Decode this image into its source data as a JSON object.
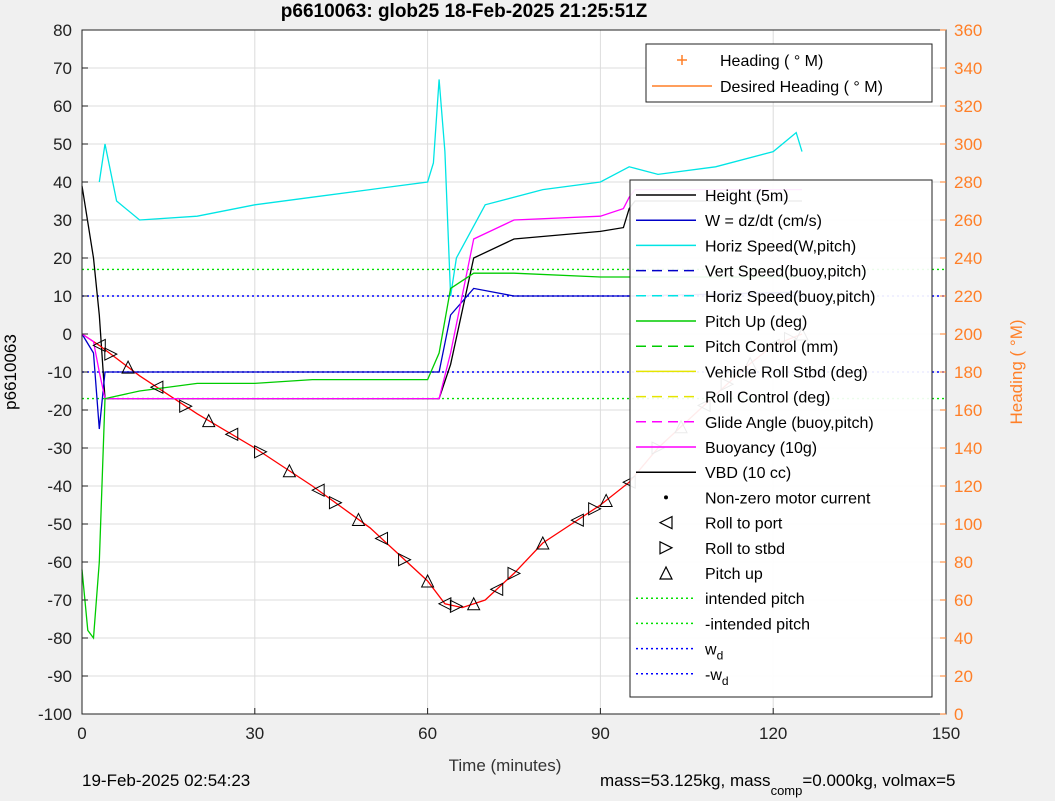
{
  "chart_data": {
    "type": "line",
    "title": "p6610063: glob25 18-Feb-2025 21:25:51Z",
    "xlabel": "Time (minutes)",
    "ylabel_left": "p6610063",
    "ylabel_right": "Heading (  °M)",
    "xlim": [
      0,
      150
    ],
    "ylim_left": [
      -100,
      80
    ],
    "ylim_right": [
      0,
      360
    ],
    "x_ticks": [
      0,
      30,
      60,
      90,
      120,
      150
    ],
    "y_ticks_left": [
      -100,
      -90,
      -80,
      -70,
      -60,
      -50,
      -40,
      -30,
      -20,
      -10,
      0,
      10,
      20,
      30,
      40,
      50,
      60,
      70,
      80
    ],
    "y_ticks_right": [
      0,
      20,
      40,
      60,
      80,
      100,
      120,
      140,
      160,
      180,
      200,
      220,
      240,
      260,
      280,
      300,
      320,
      340,
      360
    ],
    "x_tick_labels": [
      "0",
      "30",
      "60",
      "90",
      "120",
      "150"
    ],
    "y_tick_labels_left": [
      "-100",
      "-90",
      "-80",
      "-70",
      "-60",
      "-50",
      "-40",
      "-30",
      "-20",
      "-10",
      "0",
      "10",
      "20",
      "30",
      "40",
      "50",
      "60",
      "70",
      "80"
    ],
    "y_tick_labels_right": [
      "0",
      "20",
      "40",
      "60",
      "80",
      "100",
      "120",
      "140",
      "160",
      "180",
      "200",
      "220",
      "240",
      "260",
      "280",
      "300",
      "320",
      "340",
      "360"
    ],
    "grid": true,
    "legend_top": [
      {
        "label": "Heading (  ° M)",
        "color": "#ff7f27",
        "style": "plus"
      },
      {
        "label": "Desired Heading (    ° M)",
        "color": "#ff7f27",
        "style": "solid"
      }
    ],
    "legend_main": [
      {
        "label": "Height (5m)",
        "color": "#000000",
        "style": "solid"
      },
      {
        "label": "W = dz/dt (cm/s)",
        "color": "#0000c8",
        "style": "solid"
      },
      {
        "label": "Horiz Speed(W,pitch)",
        "color": "#00e5e5",
        "style": "solid"
      },
      {
        "label": "Vert Speed(buoy,pitch)",
        "color": "#0000c8",
        "style": "dashed"
      },
      {
        "label": "Horiz Speed(buoy,pitch)",
        "color": "#00e5e5",
        "style": "dashed"
      },
      {
        "label": "Pitch Up (deg)",
        "color": "#00cc00",
        "style": "solid"
      },
      {
        "label": "Pitch Control (mm)",
        "color": "#00cc00",
        "style": "dashed"
      },
      {
        "label": "Vehicle Roll Stbd (deg)",
        "color": "#e5e500",
        "style": "solid"
      },
      {
        "label": "Roll Control (deg)",
        "color": "#e5e500",
        "style": "dashed"
      },
      {
        "label": "Glide Angle (buoy,pitch)",
        "color": "#ff00ff",
        "style": "dashed"
      },
      {
        "label": "Buoyancy (10g)",
        "color": "#ff00ff",
        "style": "solid"
      },
      {
        "label": "VBD (10 cc)",
        "color": "#000000",
        "style": "solid"
      },
      {
        "label": "Non-zero motor current",
        "color": "#000000",
        "style": "dot"
      },
      {
        "label": "Roll to port",
        "color": "#000000",
        "style": "tri-left"
      },
      {
        "label": "Roll to stbd",
        "color": "#000000",
        "style": "tri-right"
      },
      {
        "label": "Pitch up",
        "color": "#000000",
        "style": "tri-up"
      },
      {
        "label": "intended pitch",
        "color": "#00e000",
        "style": "dotted"
      },
      {
        "label": "-intended pitch",
        "color": "#00e000",
        "style": "dotted"
      },
      {
        "label": "w",
        "sub": "d",
        "color": "#0000ff",
        "style": "dotted"
      },
      {
        "label": "-w",
        "sub": "d",
        "color": "#0000ff",
        "style": "dotted"
      }
    ],
    "series": [
      {
        "name": "Height (5m)",
        "color": "#000000",
        "x": [
          0,
          2,
          3,
          4,
          62,
          64,
          68,
          75,
          90,
          94,
          95,
          96,
          125
        ],
        "y": [
          39,
          20,
          5,
          -17,
          -17,
          -8,
          20,
          25,
          27,
          28,
          33,
          35,
          35
        ]
      },
      {
        "name": "Depth",
        "color": "#ff0000",
        "x": [
          0,
          3,
          10,
          20,
          30,
          40,
          50,
          55,
          60,
          63,
          66,
          70,
          75,
          80,
          85,
          90,
          95,
          100,
          105,
          110,
          115,
          120,
          125
        ],
        "y": [
          0,
          -3,
          -11,
          -21,
          -30,
          -40,
          -51,
          -58,
          -65,
          -71,
          -72,
          -70,
          -63,
          -55,
          -50,
          -45,
          -39,
          -30,
          -23,
          -16,
          -9,
          -3,
          0
        ]
      },
      {
        "name": "W = dz/dt (cm/s)",
        "color": "#0000c8",
        "x": [
          0,
          2,
          3,
          4,
          62,
          64,
          68,
          75,
          90,
          95,
          125
        ],
        "y": [
          0,
          -5,
          -25,
          -10,
          -10,
          5,
          12,
          10,
          10,
          10,
          11
        ]
      },
      {
        "name": "Buoyancy (10g)",
        "color": "#ff00ff",
        "x": [
          0,
          2,
          3,
          4,
          62,
          64,
          68,
          75,
          90,
          94,
          95,
          96,
          125
        ],
        "y": [
          0,
          -2,
          -10,
          -17,
          -17,
          -5,
          25,
          30,
          31,
          33,
          36,
          38,
          38
        ]
      },
      {
        "name": "Horiz Speed(W,pitch)",
        "color": "#00e5e5",
        "x": [
          3,
          4,
          6,
          10,
          20,
          30,
          40,
          50,
          60,
          61,
          62,
          63,
          64,
          65,
          70,
          80,
          90,
          95,
          100,
          110,
          120,
          124,
          125
        ],
        "y": [
          40,
          50,
          35,
          30,
          31,
          34,
          36,
          38,
          40,
          45,
          67,
          48,
          10,
          20,
          34,
          38,
          40,
          44,
          42,
          44,
          48,
          53,
          48
        ]
      },
      {
        "name": "Pitch Up (deg)",
        "color": "#00cc00",
        "x": [
          0,
          1,
          2,
          3,
          4,
          10,
          20,
          30,
          40,
          50,
          60,
          62,
          64,
          68,
          75,
          90,
          95,
          125
        ],
        "y": [
          -62,
          -78,
          -80,
          -60,
          -17,
          -15,
          -13,
          -13,
          -12,
          -12,
          -12,
          -5,
          12,
          16,
          16,
          15,
          15,
          15
        ]
      }
    ],
    "annotations_footer": {
      "left": "19-Feb-2025 02:54:23",
      "right_prefix": "mass=53.125kg, mass",
      "right_sub": "comp",
      "right_suffix": "=0.000kg, volmax=5"
    }
  }
}
